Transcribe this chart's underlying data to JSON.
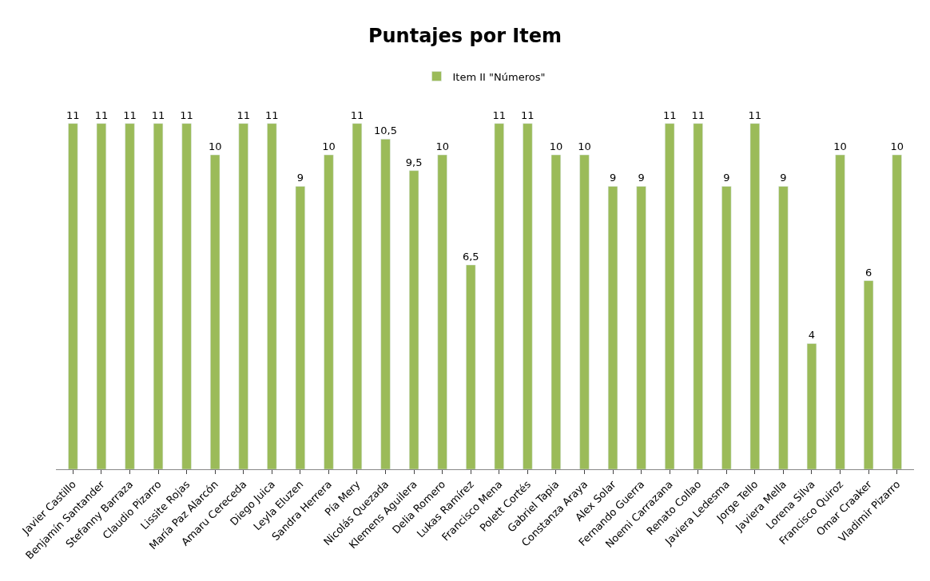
{
  "chart_data": {
    "type": "bar",
    "title": "Puntajes por Item",
    "categories": [
      "Javier Castillo",
      "Benjamín Santander",
      "Stefanny Barraza",
      "Claudio Pizarro",
      "Lissite Rojas",
      "María Paz Alarcón",
      "Amaru Cereceda",
      "Diego Juica",
      "Leyla Eluzen",
      "Sandra Herrera",
      "Pía Mery",
      "Nicolás Quezada",
      "Klemens Aguilera",
      "Delia Romero",
      "Lukas Ramírez",
      "Francisco Mena",
      "Polett Cortés",
      "Gabriel Tapia",
      "Constanza Araya",
      "Alex Solar",
      "Fernando Guerra",
      "Noemi Carrazana",
      "Renato Collao",
      "Javiera Ledesma",
      "Jorge Tello",
      "Javiera Mella",
      "Lorena Silva",
      "Francisco Quiroz",
      "Omar Craaker",
      "Vladimir Pizarro"
    ],
    "series": [
      {
        "name": "Item II \"Números\"",
        "color": "#9bbb59",
        "values": [
          11,
          11,
          11,
          11,
          11,
          10,
          11,
          11,
          9,
          10,
          11,
          10.5,
          9.5,
          10,
          6.5,
          11,
          11,
          10,
          10,
          9,
          9,
          11,
          11,
          9,
          11,
          9,
          4,
          10,
          6,
          10
        ],
        "value_labels": [
          "11",
          "11",
          "11",
          "11",
          "11",
          "10",
          "11",
          "11",
          "9",
          "10",
          "11",
          "10,5",
          "9,5",
          "10",
          "6,5",
          "11",
          "11",
          "10",
          "10",
          "9",
          "9",
          "11",
          "11",
          "9",
          "11",
          "9",
          "4",
          "10",
          "6",
          "10"
        ]
      }
    ],
    "legend": "top"
  }
}
